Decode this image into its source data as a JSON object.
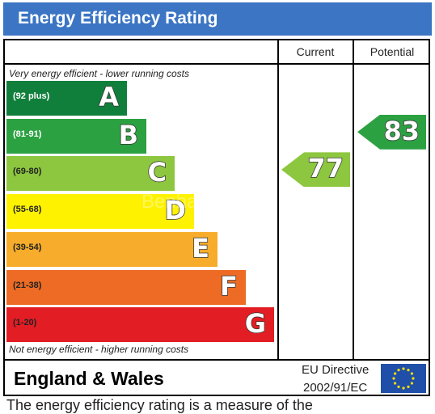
{
  "header": {
    "title": "Energy Efficiency Rating"
  },
  "columns": {
    "current": "Current",
    "potential": "Potential"
  },
  "notes": {
    "top": "Very energy efficient - lower running costs",
    "bottom": "Not energy efficient - higher running costs"
  },
  "watermark": "Benham",
  "footer": {
    "country": "England & Wales",
    "eu_line1": "EU Directive",
    "eu_line2": "2002/91/EC",
    "partial_text": "The energy efficiency rating is a measure of the"
  },
  "chart_data": {
    "type": "bar",
    "bands": [
      {
        "letter": "A",
        "range": "(92 plus)",
        "color": "#117f3c",
        "text_color": "#ffffff"
      },
      {
        "letter": "B",
        "range": "(81-91)",
        "color": "#2ca142",
        "text_color": "#ffffff"
      },
      {
        "letter": "C",
        "range": "(69-80)",
        "color": "#8dc63f",
        "text_color": "#222222"
      },
      {
        "letter": "D",
        "range": "(55-68)",
        "color": "#fff200",
        "text_color": "#222222"
      },
      {
        "letter": "E",
        "range": "(39-54)",
        "color": "#f7ac2b",
        "text_color": "#222222"
      },
      {
        "letter": "F",
        "range": "(21-38)",
        "color": "#ed6b24",
        "text_color": "#222222"
      },
      {
        "letter": "G",
        "range": "(1-20)",
        "color": "#e31d24",
        "text_color": "#222222"
      }
    ],
    "current": {
      "value": 77,
      "band": "C",
      "color": "#8dc63f"
    },
    "potential": {
      "value": 83,
      "band": "B",
      "color": "#2ca142"
    }
  }
}
